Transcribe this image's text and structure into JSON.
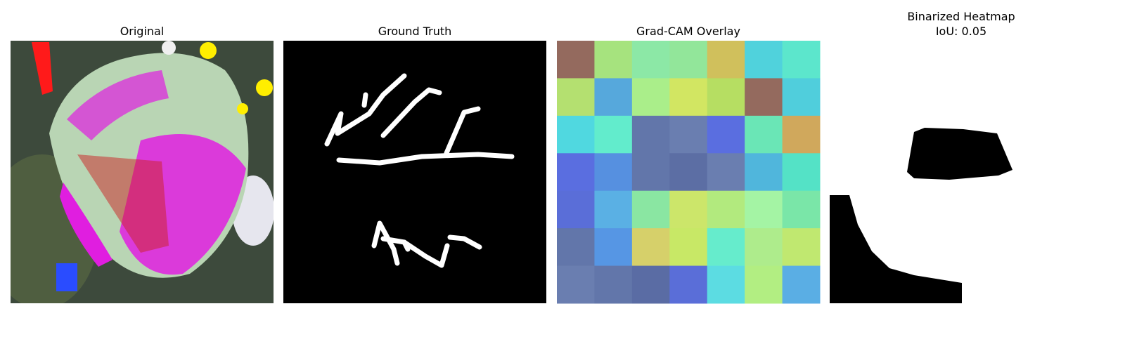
{
  "panels": [
    {
      "title": "Original"
    },
    {
      "title": "Ground Truth"
    },
    {
      "title": "Grad-CAM Overlay"
    },
    {
      "title": "Binarized Heatmap",
      "subtitle": "IoU: 0.05"
    }
  ]
}
